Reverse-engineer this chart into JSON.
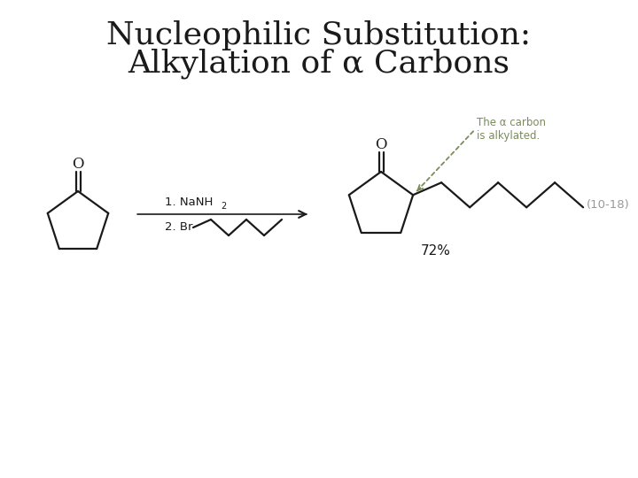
{
  "title_line1": "Nucleophilic Substitution:",
  "title_line2": "Alkylation of α Carbons",
  "title_fontsize": 26,
  "bg_color": "#ffffff",
  "text_color": "#1a1a1a",
  "annotation_color": "#7a8c5a",
  "annotation_text_line1": "The α carbon",
  "annotation_text_line2": "is alkylated.",
  "yield_text": "72%",
  "ref_text": "(10-18)",
  "reagent1": "1. NaNH",
  "reagent1_sub": "2",
  "reagent2_prefix": "2. Br"
}
